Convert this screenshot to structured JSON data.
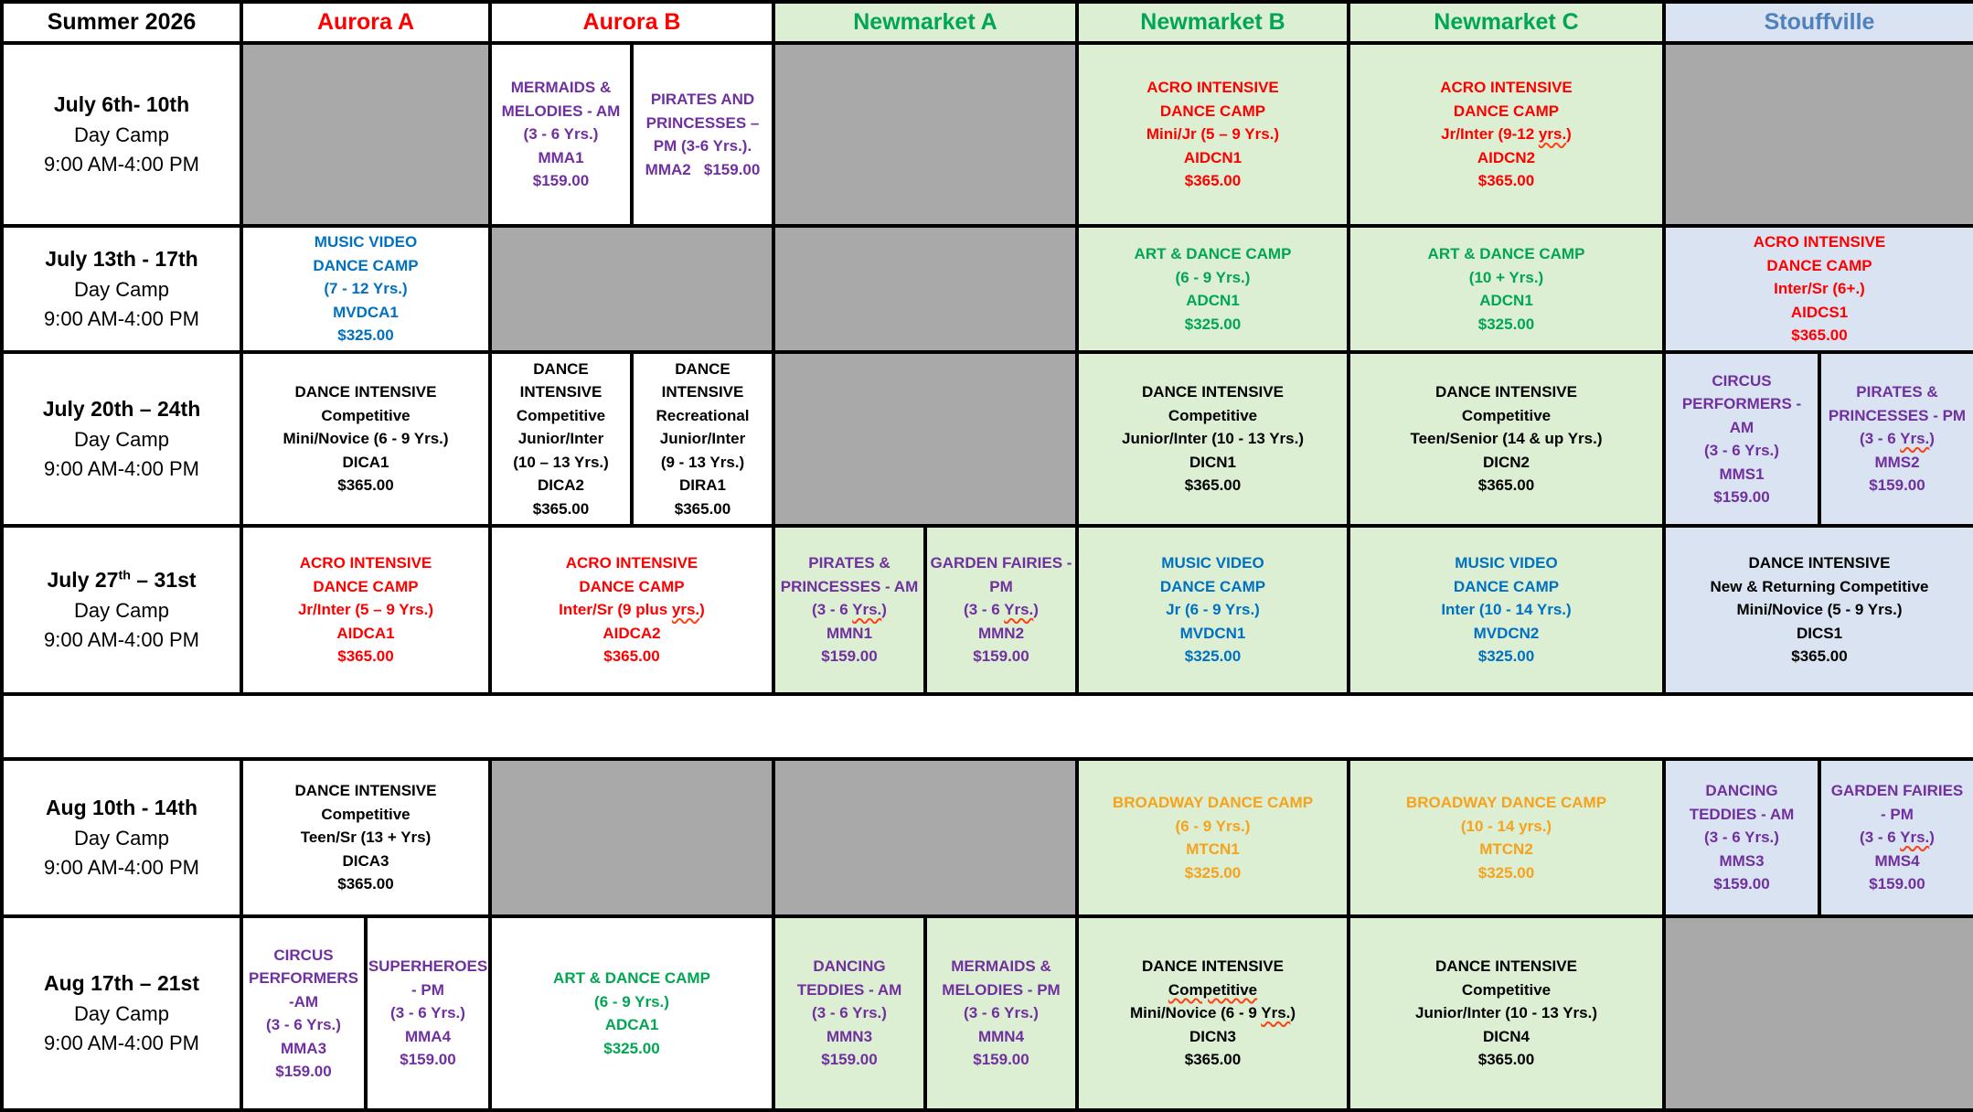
{
  "title": "Summer 2026 Day Camp Schedule",
  "colors": {
    "white": "#ffffff",
    "gray": "#a9a9a9",
    "green_bg": "#dcefd3",
    "blue_bg": "#dae3f1",
    "black": "#000000",
    "red": "#ff0000",
    "green": "#00a651",
    "blue": "#0070c0",
    "purple": "#7030a0",
    "orange": "#f6a21d",
    "header_blue": "#4f81bd"
  },
  "columns": [
    {
      "id": "week",
      "label": "Summer 2026",
      "bg": "white",
      "color": "black"
    },
    {
      "id": "aurora-a",
      "label": "Aurora A",
      "bg": "white",
      "color": "red"
    },
    {
      "id": "aurora-b",
      "label": "Aurora B",
      "bg": "white",
      "color": "red"
    },
    {
      "id": "newmarket-a",
      "label": "Newmarket A",
      "bg": "green_bg",
      "color": "green"
    },
    {
      "id": "newmarket-b",
      "label": "Newmarket B",
      "bg": "green_bg",
      "color": "green"
    },
    {
      "id": "newmarket-c",
      "label": "Newmarket C",
      "bg": "green_bg",
      "color": "green"
    },
    {
      "id": "stouffville",
      "label": "Stouffville",
      "bg": "blue_bg",
      "color": "header_blue"
    }
  ],
  "rows": [
    {
      "id": "july-6-10",
      "cells": [
        {
          "name": "week",
          "kind": "date",
          "span": 2,
          "bg": "white",
          "color": "black",
          "lines": [
            "July 6th- 10th",
            "Day Camp",
            "9:00 AM-4:00 PM"
          ]
        },
        {
          "name": "aurora-a",
          "span": 2,
          "bg": "gray",
          "color": "black",
          "lines": []
        },
        {
          "name": "aurora-b-am",
          "span": 1,
          "bg": "white",
          "color": "purple",
          "lines": [
            "MERMAIDS &",
            "MELODIES - AM",
            "(3 - 6 Yrs.)",
            "MMA1",
            "$159.00"
          ]
        },
        {
          "name": "aurora-b-pm",
          "span": 1,
          "bg": "white",
          "color": "purple",
          "lines": [
            "PIRATES AND",
            "PRINCESSES –",
            "PM (3-6 Yrs.).",
            "MMA2   $159.00"
          ]
        },
        {
          "name": "newmarket-a",
          "span": 2,
          "bg": "gray",
          "color": "black",
          "lines": []
        },
        {
          "name": "newmarket-b",
          "span": 2,
          "bg": "green_bg",
          "color": "red",
          "lines": [
            "ACRO INTENSIVE",
            "DANCE CAMP",
            "Mini/Jr (5 – 9 Yrs.)",
            "AIDCN1",
            "$365.00"
          ]
        },
        {
          "name": "newmarket-c",
          "span": 2,
          "bg": "green_bg",
          "color": "red",
          "lines": [
            "ACRO INTENSIVE",
            "DANCE CAMP",
            [
              {
                "t": "Jr/Inter (9-12 "
              },
              {
                "t": "yrs.",
                "sq": true
              },
              {
                "t": ")"
              }
            ],
            "AIDCN2",
            "$365.00"
          ]
        },
        {
          "name": "stouffville",
          "span": 2,
          "bg": "gray",
          "color": "black",
          "lines": []
        }
      ]
    },
    {
      "id": "july-13-17",
      "cells": [
        {
          "name": "week",
          "kind": "date",
          "span": 2,
          "bg": "white",
          "color": "black",
          "lines": [
            "July 13th - 17th",
            "Day Camp",
            "9:00 AM-4:00 PM"
          ]
        },
        {
          "name": "aurora-a",
          "span": 2,
          "bg": "white",
          "color": "blue",
          "lines": [
            "MUSIC VIDEO",
            "DANCE CAMP",
            "(7 - 12 Yrs.)",
            "MVDCA1",
            "$325.00"
          ]
        },
        {
          "name": "aurora-b",
          "span": 2,
          "bg": "gray",
          "color": "black",
          "lines": []
        },
        {
          "name": "newmarket-a",
          "span": 2,
          "bg": "gray",
          "color": "black",
          "lines": []
        },
        {
          "name": "newmarket-b",
          "span": 2,
          "bg": "green_bg",
          "color": "green",
          "lines": [
            "ART & DANCE CAMP",
            "(6 - 9 Yrs.)",
            "ADCN1",
            "$325.00"
          ]
        },
        {
          "name": "newmarket-c",
          "span": 2,
          "bg": "green_bg",
          "color": "green",
          "lines": [
            "ART & DANCE CAMP",
            "(10 + Yrs.)",
            "ADCN1",
            "$325.00"
          ]
        },
        {
          "name": "stouffville",
          "span": 2,
          "bg": "blue_bg",
          "color": "red",
          "lines": [
            "ACRO INTENSIVE",
            "DANCE CAMP",
            "Inter/Sr (6+.)",
            "AIDCS1",
            "$365.00"
          ]
        }
      ]
    },
    {
      "id": "july-20-24",
      "cells": [
        {
          "name": "week",
          "kind": "date",
          "span": 2,
          "bg": "white",
          "color": "black",
          "lines": [
            "July 20th – 24th",
            "Day Camp",
            "9:00 AM-4:00 PM"
          ]
        },
        {
          "name": "aurora-a",
          "span": 2,
          "bg": "white",
          "color": "black",
          "lines": [
            "DANCE INTENSIVE",
            "Competitive",
            "Mini/Novice (6 - 9 Yrs.)",
            "DICA1",
            "$365.00"
          ]
        },
        {
          "name": "aurora-b-1",
          "span": 1,
          "bg": "white",
          "color": "black",
          "lines": [
            "DANCE",
            "INTENSIVE",
            "Competitive",
            "Junior/Inter",
            "(10 – 13 Yrs.)",
            "DICA2",
            "$365.00"
          ]
        },
        {
          "name": "aurora-b-2",
          "span": 1,
          "bg": "white",
          "color": "black",
          "lines": [
            "DANCE",
            "INTENSIVE",
            "Recreational",
            "Junior/Inter",
            "(9 - 13 Yrs.)",
            "DIRA1",
            "$365.00"
          ]
        },
        {
          "name": "newmarket-a",
          "span": 2,
          "bg": "gray",
          "color": "black",
          "lines": []
        },
        {
          "name": "newmarket-b",
          "span": 2,
          "bg": "green_bg",
          "color": "black",
          "lines": [
            "DANCE INTENSIVE",
            "Competitive",
            "Junior/Inter (10 - 13 Yrs.)",
            "DICN1",
            "$365.00"
          ]
        },
        {
          "name": "newmarket-c",
          "span": 2,
          "bg": "green_bg",
          "color": "black",
          "lines": [
            "DANCE INTENSIVE",
            "Competitive",
            "Teen/Senior (14 & up Yrs.)",
            "DICN2",
            "$365.00"
          ]
        },
        {
          "name": "stouffville-am",
          "span": 1,
          "bg": "blue_bg",
          "color": "purple",
          "lines": [
            "CIRCUS",
            "PERFORMERS -",
            "AM",
            "(3 - 6 Yrs.)",
            "MMS1",
            "$159.00"
          ]
        },
        {
          "name": "stouffville-pm",
          "span": 1,
          "bg": "blue_bg",
          "color": "purple",
          "lines": [
            "PIRATES &",
            "PRINCESSES - PM",
            [
              {
                "t": "(3 - 6 "
              },
              {
                "t": "Yrs.",
                "sq": true
              },
              {
                "t": ")"
              }
            ],
            "MMS2",
            "$159.00"
          ]
        }
      ]
    },
    {
      "id": "july-27-31",
      "cells": [
        {
          "name": "week",
          "kind": "date",
          "span": 2,
          "bg": "white",
          "color": "black",
          "lines": [
            [
              {
                "t": "July 27"
              },
              {
                "t": "th",
                "sup": true
              },
              {
                "t": " – 31st"
              }
            ],
            "Day Camp",
            "9:00 AM-4:00 PM"
          ]
        },
        {
          "name": "aurora-a",
          "span": 2,
          "bg": "white",
          "color": "red",
          "lines": [
            "ACRO INTENSIVE",
            "DANCE CAMP",
            "Jr/Inter (5 – 9 Yrs.)",
            "AIDCA1",
            "$365.00"
          ]
        },
        {
          "name": "aurora-b",
          "span": 2,
          "bg": "white",
          "color": "red",
          "lines": [
            "ACRO INTENSIVE",
            "DANCE CAMP",
            [
              {
                "t": "Inter/Sr (9 plus "
              },
              {
                "t": "yrs.",
                "sq": true
              },
              {
                "t": ")"
              }
            ],
            "AIDCA2",
            "$365.00"
          ]
        },
        {
          "name": "newmarket-a-am",
          "span": 1,
          "bg": "green_bg",
          "color": "purple",
          "lines": [
            "PIRATES &",
            "PRINCESSES - AM",
            [
              {
                "t": "(3 - 6 "
              },
              {
                "t": "Yrs.",
                "sq": true
              },
              {
                "t": ")"
              }
            ],
            "MMN1",
            "$159.00"
          ]
        },
        {
          "name": "newmarket-a-pm",
          "span": 1,
          "bg": "green_bg",
          "color": "purple",
          "lines": [
            "GARDEN FAIRIES -",
            "PM",
            [
              {
                "t": "(3 - 6 "
              },
              {
                "t": "Yrs.",
                "sq": true
              },
              {
                "t": ")"
              }
            ],
            "MMN2",
            "$159.00"
          ]
        },
        {
          "name": "newmarket-b",
          "span": 2,
          "bg": "green_bg",
          "color": "blue",
          "lines": [
            "MUSIC VIDEO",
            "DANCE CAMP",
            "Jr (6 - 9 Yrs.)",
            "MVDCN1",
            "$325.00"
          ]
        },
        {
          "name": "newmarket-c",
          "span": 2,
          "bg": "green_bg",
          "color": "blue",
          "lines": [
            "MUSIC VIDEO",
            "DANCE CAMP",
            "Inter (10 - 14 Yrs.)",
            "MVDCN2",
            "$325.00"
          ]
        },
        {
          "name": "stouffville",
          "span": 2,
          "bg": "blue_bg",
          "color": "black",
          "lines": [
            "DANCE INTENSIVE",
            "New & Returning Competitive",
            "Mini/Novice (5 - 9 Yrs.)",
            "DICS1",
            "$365.00"
          ]
        }
      ]
    },
    {
      "id": "spacer",
      "cells": [
        {
          "name": "spacer",
          "span": 14,
          "bg": "white",
          "color": "black",
          "lines": []
        }
      ]
    },
    {
      "id": "aug-10-14",
      "cells": [
        {
          "name": "week",
          "kind": "date",
          "span": 2,
          "bg": "white",
          "color": "black",
          "lines": [
            "Aug 10th - 14th",
            "Day Camp",
            "9:00 AM-4:00 PM"
          ]
        },
        {
          "name": "aurora-a",
          "span": 2,
          "bg": "white",
          "color": "black",
          "lines": [
            "DANCE INTENSIVE",
            "Competitive",
            "Teen/Sr (13 + Yrs)",
            "DICA3",
            "$365.00"
          ]
        },
        {
          "name": "aurora-b",
          "span": 2,
          "bg": "gray",
          "color": "black",
          "lines": []
        },
        {
          "name": "newmarket-a",
          "span": 2,
          "bg": "gray",
          "color": "black",
          "lines": []
        },
        {
          "name": "newmarket-b",
          "span": 2,
          "bg": "green_bg",
          "color": "orange",
          "lines": [
            "BROADWAY DANCE CAMP",
            "(6 - 9 Yrs.)",
            "MTCN1",
            "$325.00"
          ]
        },
        {
          "name": "newmarket-c",
          "span": 2,
          "bg": "green_bg",
          "color": "orange",
          "lines": [
            "BROADWAY DANCE CAMP",
            "(10 - 14 yrs.)",
            "MTCN2",
            "$325.00"
          ]
        },
        {
          "name": "stouffville-am",
          "span": 1,
          "bg": "blue_bg",
          "color": "purple",
          "lines": [
            "DANCING",
            "TEDDIES - AM",
            "(3 - 6 Yrs.)",
            "MMS3",
            "$159.00"
          ]
        },
        {
          "name": "stouffville-pm",
          "span": 1,
          "bg": "blue_bg",
          "color": "purple",
          "lines": [
            "GARDEN FAIRIES",
            "- PM",
            [
              {
                "t": "(3 - 6 "
              },
              {
                "t": "Yrs.",
                "sq": true
              },
              {
                "t": ")"
              }
            ],
            "MMS4",
            "$159.00"
          ]
        }
      ]
    },
    {
      "id": "aug-17-21",
      "cells": [
        {
          "name": "week",
          "kind": "date",
          "span": 2,
          "bg": "white",
          "color": "black",
          "lines": [
            "Aug 17th – 21st",
            "Day Camp",
            "9:00 AM-4:00 PM"
          ]
        },
        {
          "name": "aurora-a-am",
          "span": 1,
          "bg": "white",
          "color": "purple",
          "lines": [
            "CIRCUS",
            "PERFORMERS",
            "-AM",
            "(3 - 6 Yrs.)",
            "MMA3",
            "$159.00"
          ]
        },
        {
          "name": "aurora-a-pm",
          "span": 1,
          "bg": "white",
          "color": "purple",
          "lines": [
            "SUPERHEROES",
            "- PM",
            "(3 - 6 Yrs.)",
            "MMA4",
            "$159.00"
          ]
        },
        {
          "name": "aurora-b",
          "span": 2,
          "bg": "white",
          "color": "green",
          "lines": [
            "ART & DANCE CAMP",
            "(6 - 9 Yrs.)",
            "ADCA1",
            "$325.00"
          ]
        },
        {
          "name": "newmarket-a-am",
          "span": 1,
          "bg": "green_bg",
          "color": "purple",
          "lines": [
            "DANCING",
            "TEDDIES - AM",
            "(3 - 6 Yrs.)",
            "MMN3",
            "$159.00"
          ]
        },
        {
          "name": "newmarket-a-pm",
          "span": 1,
          "bg": "green_bg",
          "color": "purple",
          "lines": [
            "MERMAIDS &",
            "MELODIES - PM",
            "(3 - 6 Yrs.)",
            "MMN4",
            "$159.00"
          ]
        },
        {
          "name": "newmarket-b",
          "span": 2,
          "bg": "green_bg",
          "color": "black",
          "lines": [
            "DANCE INTENSIVE",
            [
              {
                "t": "Competitive",
                "sq": true
              }
            ],
            [
              {
                "t": "Mini/Novice (6 - 9 "
              },
              {
                "t": "Yrs.",
                "sq": true
              },
              {
                "t": ")"
              }
            ],
            "DICN3",
            "$365.00"
          ]
        },
        {
          "name": "newmarket-c",
          "span": 2,
          "bg": "green_bg",
          "color": "black",
          "lines": [
            "DANCE INTENSIVE",
            "Competitive",
            "Junior/Inter (10 - 13 Yrs.)",
            "DICN4",
            "$365.00"
          ]
        },
        {
          "name": "stouffville",
          "span": 2,
          "bg": "gray",
          "color": "black",
          "lines": []
        }
      ]
    }
  ]
}
